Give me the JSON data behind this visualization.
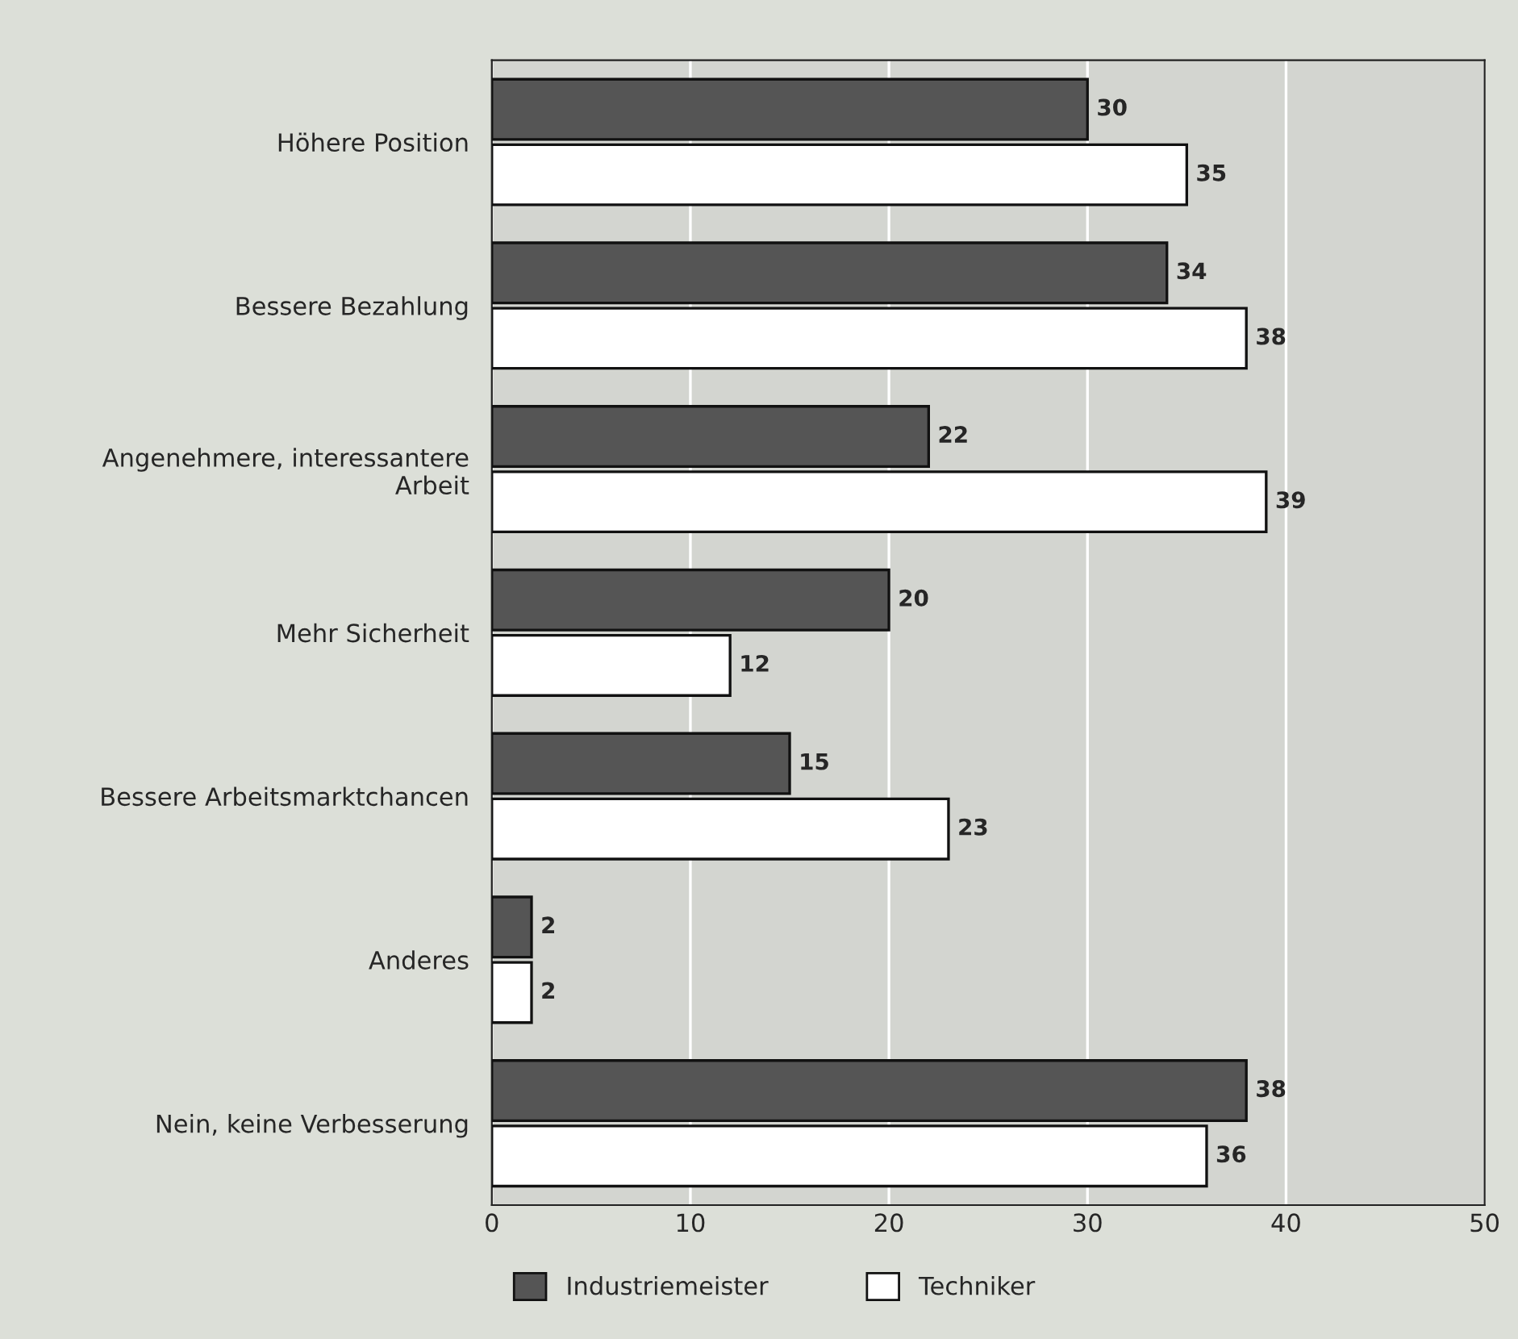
{
  "chart_data": {
    "type": "bar",
    "orientation": "horizontal",
    "categories": [
      "Höhere Position",
      "Bessere Bezahlung",
      "Angenehmere, interessantere\nArbeit",
      "Mehr Sicherheit",
      "Bessere Arbeitsmarktchancen",
      "Anderes",
      "Nein, keine Verbesserung"
    ],
    "series": [
      {
        "name": "Industriemeister",
        "color": "#555555",
        "values": [
          30,
          34,
          22,
          20,
          15,
          2,
          38
        ]
      },
      {
        "name": "Techniker",
        "color": "#ffffff",
        "values": [
          35,
          38,
          39,
          12,
          23,
          2,
          36
        ]
      }
    ],
    "xlim": [
      0,
      50
    ],
    "xticks": [
      0,
      10,
      20,
      30,
      40,
      50
    ],
    "grid": "x",
    "legend": "bottom",
    "data_labels": true
  }
}
